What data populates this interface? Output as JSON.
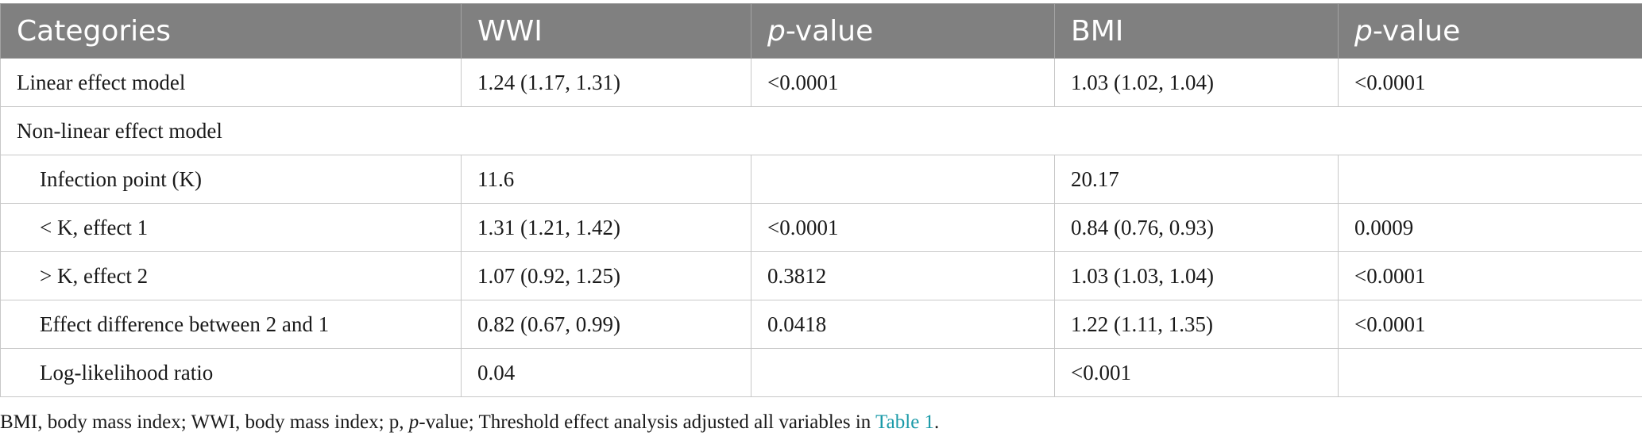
{
  "table": {
    "headers": [
      {
        "pre": "",
        "ital": "",
        "text": "Categories"
      },
      {
        "pre": "",
        "ital": "",
        "text": "WWI"
      },
      {
        "pre": "",
        "ital": "p",
        "text": "-value"
      },
      {
        "pre": "",
        "ital": "",
        "text": "BMI"
      },
      {
        "pre": "",
        "ital": "p",
        "text": "-value"
      }
    ],
    "rows": [
      {
        "indent": false,
        "span": false,
        "cells": [
          "Linear effect model",
          "1.24 (1.17, 1.31)",
          "<0.0001",
          "1.03 (1.02, 1.04)",
          "<0.0001"
        ]
      },
      {
        "indent": false,
        "span": true,
        "cells": [
          "Non-linear effect model"
        ]
      },
      {
        "indent": true,
        "span": false,
        "cells": [
          "Infection point (K)",
          "11.6",
          "",
          "20.17",
          ""
        ]
      },
      {
        "indent": true,
        "span": false,
        "cells": [
          "< K, effect 1",
          "1.31 (1.21, 1.42)",
          "<0.0001",
          "0.84 (0.76, 0.93)",
          "0.0009"
        ]
      },
      {
        "indent": true,
        "span": false,
        "cells": [
          "> K, effect 2",
          "1.07 (0.92, 1.25)",
          "0.3812",
          "1.03 (1.03, 1.04)",
          "<0.0001"
        ]
      },
      {
        "indent": true,
        "span": false,
        "cells": [
          "Effect difference between 2 and 1",
          "0.82 (0.67, 0.99)",
          "0.0418",
          "1.22 (1.11, 1.35)",
          "<0.0001"
        ]
      },
      {
        "indent": true,
        "span": false,
        "cells": [
          "Log-likelihood ratio",
          "0.04",
          "",
          "<0.001",
          ""
        ]
      }
    ]
  },
  "footnote": {
    "part1": "BMI, body mass index; WWI, body mass index; p, ",
    "ital": "p",
    "part2": "-value; Threshold effect analysis adjusted all variables in ",
    "link": "Table 1",
    "part3": "."
  },
  "colors": {
    "header_bg": "#808080",
    "header_text": "#ffffff",
    "border": "#c8c8c8",
    "link": "#1a9aa8"
  }
}
